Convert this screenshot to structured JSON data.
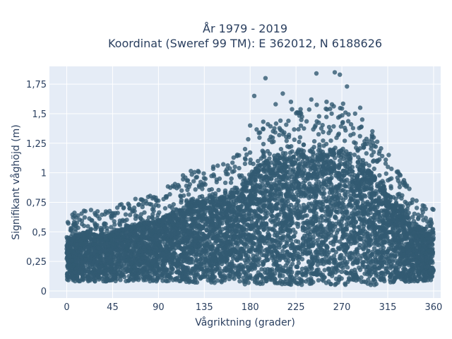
{
  "chart_data": {
    "type": "scatter",
    "title_line1": "År 1979 - 2019",
    "title_line2": "Koordinat (Sweref 99 TM): E 362012, N 6188626",
    "xlabel": "Vågriktning (grader)",
    "ylabel": "Signifikant våghöjd (m)",
    "xlim": [
      -17,
      367
    ],
    "ylim": [
      -0.06,
      1.9
    ],
    "xticks": [
      0,
      45,
      90,
      135,
      180,
      225,
      270,
      315,
      360
    ],
    "xtick_labels": [
      "0",
      "45",
      "90",
      "135",
      "180",
      "225",
      "270",
      "315",
      "360"
    ],
    "yticks": [
      0,
      0.25,
      0.5,
      0.75,
      1,
      1.25,
      1.5,
      1.75
    ],
    "ytick_labels": [
      "0",
      "0,25",
      "0,5",
      "0,75",
      "1",
      "1,25",
      "1,5",
      "1,75"
    ],
    "grid": true,
    "background": "#e5ecf6",
    "marker_color": "#325a72",
    "envelope": {
      "x": [
        0,
        10,
        20,
        30,
        45,
        60,
        75,
        90,
        105,
        120,
        135,
        150,
        165,
        180,
        195,
        210,
        225,
        240,
        255,
        270,
        285,
        300,
        315,
        330,
        345,
        360
      ],
      "min": [
        0.08,
        0.08,
        0.08,
        0.08,
        0.08,
        0.08,
        0.08,
        0.08,
        0.08,
        0.07,
        0.07,
        0.06,
        0.06,
        0.05,
        0.05,
        0.05,
        0.05,
        0.05,
        0.05,
        0.05,
        0.05,
        0.05,
        0.06,
        0.07,
        0.08,
        0.09
      ],
      "max": [
        0.45,
        0.48,
        0.5,
        0.48,
        0.5,
        0.55,
        0.58,
        0.6,
        0.68,
        0.75,
        0.78,
        0.8,
        0.85,
        1.0,
        1.1,
        1.15,
        1.2,
        1.2,
        1.2,
        1.22,
        1.1,
        1.0,
        0.85,
        0.7,
        0.55,
        0.5
      ]
    },
    "outliers": [
      {
        "x": 195,
        "y": 1.8
      },
      {
        "x": 212,
        "y": 1.67
      },
      {
        "x": 245,
        "y": 1.84
      },
      {
        "x": 263,
        "y": 1.85
      },
      {
        "x": 268,
        "y": 1.83
      },
      {
        "x": 275,
        "y": 1.73
      },
      {
        "x": 288,
        "y": 1.55
      },
      {
        "x": 184,
        "y": 1.65
      },
      {
        "x": 205,
        "y": 1.58
      },
      {
        "x": 230,
        "y": 1.5
      },
      {
        "x": 255,
        "y": 1.6
      },
      {
        "x": 283,
        "y": 1.5
      },
      {
        "x": 180,
        "y": 1.4
      },
      {
        "x": 290,
        "y": 1.45
      },
      {
        "x": 300,
        "y": 1.35
      },
      {
        "x": 316,
        "y": 1.15
      },
      {
        "x": 330,
        "y": 0.92
      },
      {
        "x": 350,
        "y": 0.6
      },
      {
        "x": 357,
        "y": 0.55
      },
      {
        "x": 130,
        "y": 0.88
      },
      {
        "x": 136,
        "y": 0.9
      },
      {
        "x": 108,
        "y": 0.87
      },
      {
        "x": 90,
        "y": 0.72
      },
      {
        "x": 65,
        "y": 0.68
      },
      {
        "x": 50,
        "y": 0.66
      },
      {
        "x": 17,
        "y": 0.55
      },
      {
        "x": 4,
        "y": 0.53
      },
      {
        "x": 150,
        "y": 0.95
      },
      {
        "x": 165,
        "y": 1.05
      },
      {
        "x": 175,
        "y": 1.2
      },
      {
        "x": 220,
        "y": 1.6
      },
      {
        "x": 240,
        "y": 1.62
      },
      {
        "x": 260,
        "y": 1.5
      }
    ]
  }
}
